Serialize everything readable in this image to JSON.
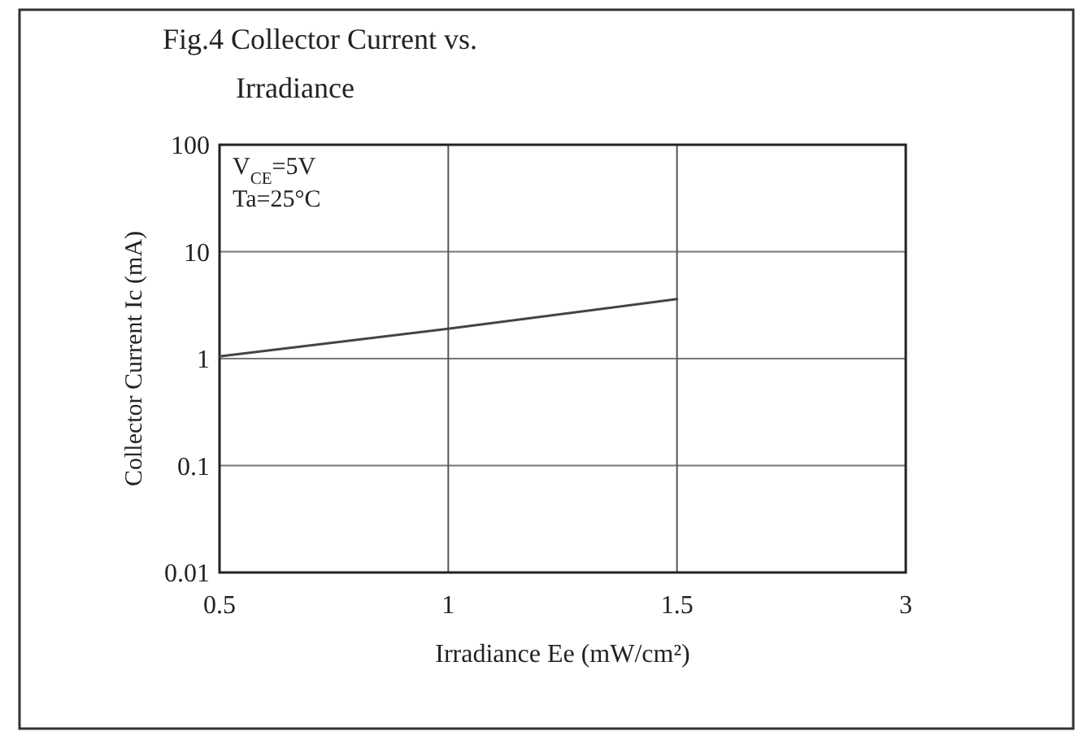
{
  "chart_data": {
    "type": "line",
    "title": "Fig.4 Collector Current vs. Irradiance",
    "xlabel": "Irradiance Ee (mW/cm²)",
    "ylabel": "Collector Current Ic (mA)",
    "categories": [
      "0.5",
      "1",
      "1.5",
      "3"
    ],
    "series": [
      {
        "color": "#444444",
        "values": [
          1.05,
          1.9,
          3.6,
          null
        ]
      }
    ],
    "log": "y",
    "ylim": [
      0.01,
      100
    ],
    "yticks": [
      0.01,
      0.1,
      1,
      10,
      100
    ],
    "grid": true,
    "marker": "none",
    "line_style": "solid",
    "annotations": [
      "V$_{CE}$=5V",
      "Ta=25°C"
    ]
  }
}
